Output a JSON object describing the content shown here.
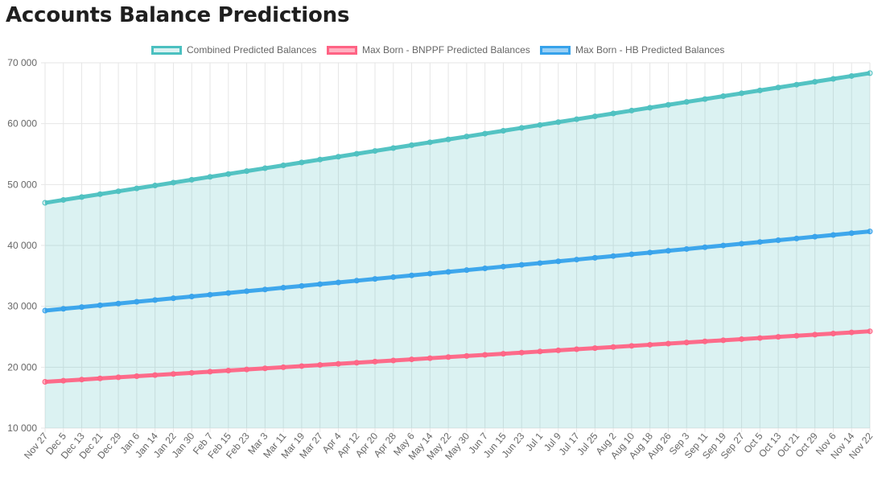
{
  "page": {
    "title": "Accounts Balance Predictions"
  },
  "chart_data": {
    "type": "line",
    "x": [
      "Nov 27",
      "Dec 5",
      "Dec 13",
      "Dec 21",
      "Dec 29",
      "Jan 6",
      "Jan 14",
      "Jan 22",
      "Jan 30",
      "Feb 7",
      "Feb 15",
      "Feb 23",
      "Mar 3",
      "Mar 11",
      "Mar 19",
      "Mar 27",
      "Apr 4",
      "Apr 12",
      "Apr 20",
      "Apr 28",
      "May 6",
      "May 14",
      "May 22",
      "May 30",
      "Jun 7",
      "Jun 15",
      "Jun 23",
      "Jul 1",
      "Jul 9",
      "Jul 17",
      "Jul 25",
      "Aug 2",
      "Aug 10",
      "Aug 18",
      "Aug 26",
      "Sep 3",
      "Sep 11",
      "Sep 19",
      "Sep 27",
      "Oct 5",
      "Oct 13",
      "Oct 21",
      "Oct 29",
      "Nov 6",
      "Nov 14",
      "Nov 22"
    ],
    "ylim": [
      10000,
      70000
    ],
    "yticks": [
      10000,
      20000,
      30000,
      40000,
      50000,
      60000,
      70000
    ],
    "ytick_labels": [
      "10 000",
      "20 000",
      "30 000",
      "40 000",
      "50 000",
      "60 000",
      "70 000"
    ],
    "grid": true,
    "legend_position": "top",
    "series": [
      {
        "name": "Combined Predicted Balances",
        "start": 47000,
        "end": 68300,
        "color": "#4bc0c0",
        "fill": "rgba(75,192,192,0.2)",
        "filled": true
      },
      {
        "name": "Max Born - BNPPF Predicted Balances",
        "start": 17600,
        "end": 25900,
        "color": "#ff6384",
        "fill": "rgba(255,99,132,0.5)",
        "filled": false
      },
      {
        "name": "Max Born - HB Predicted Balances",
        "start": 29300,
        "end": 42300,
        "color": "#36a2eb",
        "fill": "rgba(54,162,235,0.5)",
        "filled": false
      }
    ]
  }
}
